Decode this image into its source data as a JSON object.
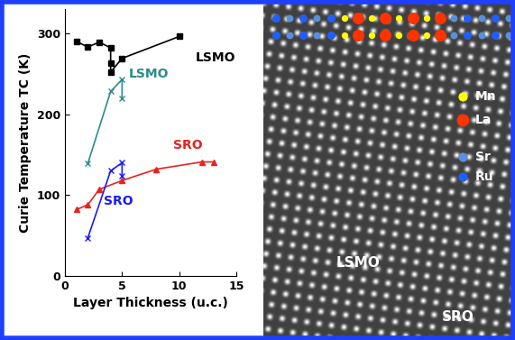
{
  "chart_data": {
    "type": "line",
    "x_label": "Layer Thickness (u.c.)",
    "y_label": "Curie Temperature TC (K)",
    "xlim": [
      0,
      15
    ],
    "xticks": [
      0,
      5,
      10,
      15
    ],
    "ylim": [
      0,
      330
    ],
    "yticks": [
      0,
      100,
      200,
      300
    ],
    "grid": false,
    "series": [
      {
        "name": "LSMO",
        "color": "#000000",
        "marker": "square",
        "line_style": "solid",
        "x": [
          1,
          2,
          3,
          4,
          4,
          4,
          5,
          10
        ],
        "values": [
          290,
          283,
          289,
          282,
          263,
          252,
          269,
          296
        ]
      },
      {
        "name": "LSMO",
        "color": "#2e8b8b",
        "marker": "x",
        "line_style": "solid",
        "x": [
          2,
          4,
          5,
          5
        ],
        "values": [
          139,
          228,
          243,
          220
        ]
      },
      {
        "name": "SRO",
        "color": "#e8231f",
        "marker": "triangle",
        "line_style": "solid",
        "x": [
          1,
          2,
          3,
          5,
          8,
          12,
          13
        ],
        "values": [
          82,
          88,
          107,
          118,
          132,
          141,
          141
        ]
      },
      {
        "name": "SRO",
        "color": "#1a1aff",
        "marker": "x",
        "line_style": "solid",
        "x": [
          2,
          4,
          5,
          5
        ],
        "values": [
          47,
          130,
          140,
          124
        ]
      }
    ]
  },
  "image": {
    "legend": [
      {
        "label": "Mn",
        "color": "#ffff00"
      },
      {
        "label": "La",
        "color": "#ff3300"
      },
      {
        "label": "Sr",
        "color": "#5b8fd9"
      },
      {
        "label": "Ru",
        "color": "#1f5fff"
      }
    ],
    "labels": [
      "LSMO",
      "SRO"
    ]
  }
}
